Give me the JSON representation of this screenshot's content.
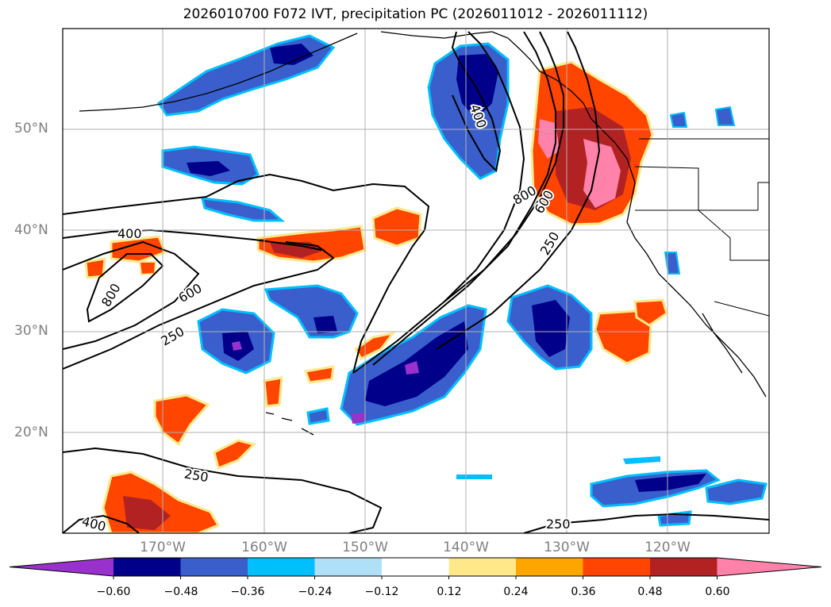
{
  "title": "2026010700 F072 IVT, precipitation PC (2026011012 - 2026011112)",
  "lat_labels": [
    "50°N",
    "40°N",
    "30°N",
    "20°N"
  ],
  "lon_labels": [
    "170°W",
    "160°W",
    "150°W",
    "140°W",
    "130°W",
    "120°W"
  ],
  "contour_labels": [
    "400",
    "800",
    "600",
    "250",
    "800",
    "600",
    "250",
    "400",
    "250",
    "400",
    "250"
  ],
  "colorbar": {
    "ticks": [
      "−0.60",
      "−0.48",
      "−0.36",
      "−0.24",
      "−0.12",
      "0.12",
      "0.24",
      "0.36",
      "0.48",
      "0.60"
    ],
    "colors": [
      "#9932cc",
      "#00008b",
      "#3a5fcd",
      "#00bfff",
      "#b0e0f8",
      "#ffffff",
      "#ffe88a",
      "#ffa500",
      "#ff4500",
      "#b22222",
      "#ff82ab"
    ]
  },
  "colors": {
    "neg_strong": "#00008b",
    "neg_mid": "#3a5fcd",
    "neg_light": "#00bfff",
    "pos_light": "#ffe88a",
    "pos_mid": "#ff4500",
    "pos_strong": "#b22222",
    "pos_max": "#ff82ab"
  }
}
